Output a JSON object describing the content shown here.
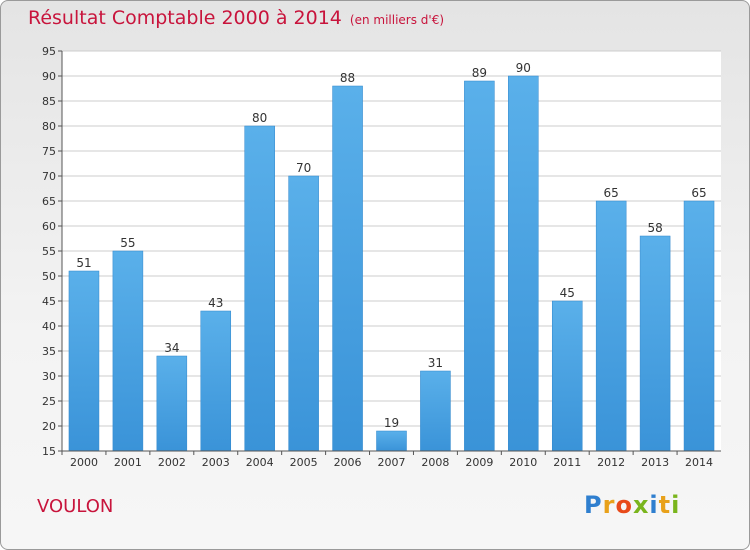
{
  "chart_data": {
    "type": "bar",
    "title": "Résultat Comptable 2000 à 2014",
    "subtitle": "(en milliers d'€)",
    "categories": [
      "2000",
      "2001",
      "2002",
      "2003",
      "2004",
      "2005",
      "2006",
      "2007",
      "2008",
      "2009",
      "2010",
      "2011",
      "2012",
      "2013",
      "2014"
    ],
    "values": [
      51,
      55,
      34,
      43,
      80,
      70,
      88,
      19,
      31,
      89,
      90,
      45,
      65,
      58,
      65
    ],
    "ylim": [
      15,
      95
    ],
    "yticks": [
      15,
      20,
      25,
      30,
      35,
      40,
      45,
      50,
      55,
      60,
      65,
      70,
      75,
      80,
      85,
      90,
      95
    ],
    "grid": true,
    "bar_color": "#3a93d8",
    "xlabel": "",
    "ylabel": ""
  },
  "place_name": "VOULON",
  "logo": {
    "letters": [
      "P",
      "r",
      "o",
      "x",
      "i",
      "t",
      "i"
    ],
    "colors": [
      "#2f7fcf",
      "#e8a11a",
      "#e84a1a",
      "#7ab51d",
      "#2f7fcf",
      "#e8a11a",
      "#7ab51d"
    ]
  },
  "colors": {
    "title": "#c8143c",
    "axis": "#333333",
    "grid": "#cccccc"
  }
}
